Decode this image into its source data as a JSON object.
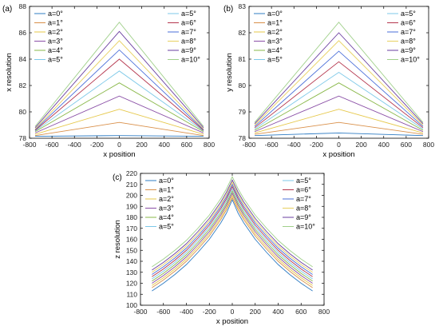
{
  "colors": [
    "#2f7cc3",
    "#d9904a",
    "#e6c84a",
    "#8a4fa6",
    "#8ab84a",
    "#7cc8e8",
    "#b5364d",
    "#4a6fd9",
    "#e8d060",
    "#6a3fa0",
    "#a0d08a"
  ],
  "chart_data": [
    {
      "type": "line",
      "panel_label": "(a)",
      "xlabel": "x position",
      "ylabel": "x resolution",
      "xlim": [
        -800,
        800
      ],
      "ylim": [
        78,
        88
      ],
      "xticks": [
        "-800",
        "-600",
        "-400",
        "-200",
        "0",
        "200",
        "400",
        "600",
        "800"
      ],
      "yticks": [
        "78",
        "80",
        "82",
        "84",
        "86",
        "88"
      ],
      "x": [
        -750,
        0,
        750
      ],
      "legend_left": [
        "a=0°",
        "a=1°",
        "a=2°",
        "a=3°",
        "a=4°",
        "a=5°"
      ],
      "legend_right": [
        "a=5°",
        "a=6°",
        "a=7°",
        "a=8°",
        "a=9°",
        "a=10°"
      ],
      "series": [
        {
          "name": "a=0°",
          "values": [
            78.15,
            78.2,
            78.15
          ]
        },
        {
          "name": "a=1°",
          "values": [
            78.2,
            79.2,
            78.2
          ]
        },
        {
          "name": "a=2°",
          "values": [
            78.3,
            80.2,
            78.3
          ]
        },
        {
          "name": "a=3°",
          "values": [
            78.4,
            81.2,
            78.4
          ]
        },
        {
          "name": "a=4°",
          "values": [
            78.5,
            82.2,
            78.5
          ]
        },
        {
          "name": "a=5°",
          "values": [
            78.55,
            83.1,
            78.55
          ]
        },
        {
          "name": "a=6°",
          "values": [
            78.6,
            84.0,
            78.6
          ]
        },
        {
          "name": "a=7°",
          "values": [
            78.65,
            84.7,
            78.65
          ]
        },
        {
          "name": "a=8°",
          "values": [
            78.7,
            85.4,
            78.7
          ]
        },
        {
          "name": "a=9°",
          "values": [
            78.8,
            86.1,
            78.8
          ]
        },
        {
          "name": "a=10°",
          "values": [
            78.9,
            86.8,
            78.9
          ]
        }
      ]
    },
    {
      "type": "line",
      "panel_label": "(b)",
      "xlabel": "x position",
      "ylabel": "y resolution",
      "xlim": [
        -800,
        800
      ],
      "ylim": [
        78,
        83
      ],
      "xticks": [
        "-800",
        "-600",
        "-400",
        "-200",
        "0",
        "200",
        "400",
        "600",
        "800"
      ],
      "yticks": [
        "78",
        "79",
        "80",
        "81",
        "82",
        "83"
      ],
      "x": [
        -750,
        0,
        750
      ],
      "legend_left": [
        "a=0°",
        "a=1°",
        "a=2°",
        "a=3°",
        "a=4°",
        "a=5°"
      ],
      "legend_right": [
        "a=5°",
        "a=6°",
        "a=7°",
        "a=8°",
        "a=9°",
        "a=10°"
      ],
      "series": [
        {
          "name": "a=0°",
          "values": [
            78.1,
            78.2,
            78.1
          ]
        },
        {
          "name": "a=1°",
          "values": [
            78.15,
            78.6,
            78.15
          ]
        },
        {
          "name": "a=2°",
          "values": [
            78.2,
            79.1,
            78.2
          ]
        },
        {
          "name": "a=3°",
          "values": [
            78.25,
            79.6,
            78.25
          ]
        },
        {
          "name": "a=4°",
          "values": [
            78.3,
            80.1,
            78.3
          ]
        },
        {
          "name": "a=5°",
          "values": [
            78.35,
            80.5,
            78.35
          ]
        },
        {
          "name": "a=6°",
          "values": [
            78.4,
            80.9,
            78.4
          ]
        },
        {
          "name": "a=7°",
          "values": [
            78.45,
            81.3,
            78.45
          ]
        },
        {
          "name": "a=8°",
          "values": [
            78.5,
            81.7,
            78.5
          ]
        },
        {
          "name": "a=9°",
          "values": [
            78.55,
            82.0,
            78.55
          ]
        },
        {
          "name": "a=10°",
          "values": [
            78.6,
            82.4,
            78.6
          ]
        }
      ]
    },
    {
      "type": "line",
      "panel_label": "(c)",
      "xlabel": "x position",
      "ylabel": "z resolution",
      "xlim": [
        -800,
        800
      ],
      "ylim": [
        100,
        220
      ],
      "xticks": [
        "-800",
        "-600",
        "-400",
        "-200",
        "0",
        "200",
        "400",
        "600",
        "800"
      ],
      "yticks": [
        "100",
        "110",
        "120",
        "130",
        "140",
        "150",
        "160",
        "170",
        "180",
        "190",
        "200",
        "210",
        "220"
      ],
      "x": [
        -700,
        -600,
        -500,
        -400,
        -300,
        -200,
        -100,
        -50,
        0,
        50,
        100,
        200,
        300,
        400,
        500,
        600,
        700
      ],
      "legend_left": [
        "a=0°",
        "a=1°",
        "a=2°",
        "a=3°",
        "a=4°",
        "a=5°"
      ],
      "legend_right": [
        "a=5°",
        "a=6°",
        "a=7°",
        "a=8°",
        "a=9°",
        "a=10°"
      ],
      "series": [
        {
          "name": "a=0°",
          "values": [
            113,
            120,
            128,
            137,
            148,
            160,
            175,
            184,
            196,
            184,
            175,
            160,
            148,
            137,
            128,
            120,
            113
          ]
        },
        {
          "name": "a=1°",
          "values": [
            116,
            123,
            131,
            140,
            151,
            163,
            178,
            187,
            198,
            187,
            178,
            163,
            151,
            140,
            131,
            123,
            116
          ]
        },
        {
          "name": "a=2°",
          "values": [
            118,
            125,
            133,
            142,
            153,
            165,
            180,
            189,
            200,
            189,
            180,
            165,
            153,
            142,
            133,
            125,
            118
          ]
        },
        {
          "name": "a=3°",
          "values": [
            120,
            127,
            135,
            144,
            155,
            167,
            182,
            191,
            202,
            191,
            182,
            167,
            155,
            144,
            135,
            127,
            120
          ]
        },
        {
          "name": "a=4°",
          "values": [
            122,
            129,
            137,
            146,
            157,
            169,
            184,
            193,
            204,
            193,
            184,
            169,
            157,
            146,
            137,
            129,
            122
          ]
        },
        {
          "name": "a=5°",
          "values": [
            124,
            131,
            139,
            148,
            159,
            171,
            186,
            195,
            206,
            195,
            186,
            171,
            159,
            148,
            139,
            131,
            124
          ]
        },
        {
          "name": "a=6°",
          "values": [
            126,
            133,
            141,
            150,
            161,
            173,
            188,
            197,
            208,
            197,
            188,
            173,
            161,
            150,
            141,
            133,
            126
          ]
        },
        {
          "name": "a=7°",
          "values": [
            128,
            135,
            143,
            152,
            163,
            175,
            190,
            199,
            210,
            199,
            190,
            175,
            163,
            152,
            143,
            135,
            128
          ]
        },
        {
          "name": "a=8°",
          "values": [
            130,
            137,
            145,
            154,
            165,
            177,
            192,
            201,
            212,
            201,
            192,
            177,
            165,
            154,
            145,
            137,
            130
          ]
        },
        {
          "name": "a=9°",
          "values": [
            132,
            139,
            147,
            156,
            167,
            179,
            194,
            203,
            214,
            203,
            194,
            179,
            167,
            156,
            147,
            139,
            132
          ]
        },
        {
          "name": "a=10°",
          "values": [
            135,
            142,
            150,
            159,
            170,
            182,
            197,
            206,
            217,
            206,
            197,
            182,
            170,
            159,
            150,
            142,
            135
          ]
        }
      ]
    }
  ]
}
